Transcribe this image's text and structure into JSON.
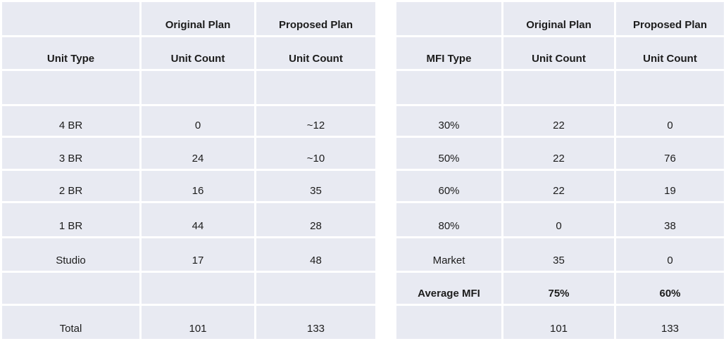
{
  "colors": {
    "cell_fill": "#e8eaf2",
    "gridline": "#ffffff",
    "text": "#1c1c1c"
  },
  "tables": [
    {
      "name": "unit-type-comparison",
      "rows": [
        {
          "bold": true,
          "cells": [
            "",
            "Original Plan",
            "Proposed Plan"
          ]
        },
        {
          "bold": true,
          "cells": [
            "Unit Type",
            "Unit Count",
            "Unit Count"
          ]
        },
        {
          "bold": false,
          "cells": [
            "",
            "",
            ""
          ]
        },
        {
          "bold": false,
          "cells": [
            "4 BR",
            "0",
            "~12"
          ]
        },
        {
          "bold": false,
          "cells": [
            "3 BR",
            "24",
            "~10"
          ]
        },
        {
          "bold": false,
          "cells": [
            "2 BR",
            "16",
            "35"
          ]
        },
        {
          "bold": false,
          "cells": [
            "1 BR",
            "44",
            "28"
          ]
        },
        {
          "bold": false,
          "cells": [
            "Studio",
            "17",
            "48"
          ]
        },
        {
          "bold": false,
          "cells": [
            "",
            "",
            ""
          ]
        },
        {
          "bold": false,
          "cells": [
            "Total",
            "101",
            "133"
          ]
        }
      ]
    },
    {
      "name": "mfi-type-comparison",
      "rows": [
        {
          "bold": true,
          "cells": [
            "",
            "Original Plan",
            "Proposed Plan"
          ]
        },
        {
          "bold": true,
          "cells": [
            "MFI Type",
            "Unit Count",
            "Unit Count"
          ]
        },
        {
          "bold": false,
          "cells": [
            "",
            "",
            ""
          ]
        },
        {
          "bold": false,
          "cells": [
            "30%",
            "22",
            "0"
          ]
        },
        {
          "bold": false,
          "cells": [
            "50%",
            "22",
            "76"
          ]
        },
        {
          "bold": false,
          "cells": [
            "60%",
            "22",
            "19"
          ]
        },
        {
          "bold": false,
          "cells": [
            "80%",
            "0",
            "38"
          ]
        },
        {
          "bold": false,
          "cells": [
            "Market",
            "35",
            "0"
          ]
        },
        {
          "bold": true,
          "cells": [
            "Average MFI",
            "75%",
            "60%"
          ]
        },
        {
          "bold": false,
          "cells": [
            "",
            "101",
            "133"
          ]
        }
      ]
    }
  ]
}
